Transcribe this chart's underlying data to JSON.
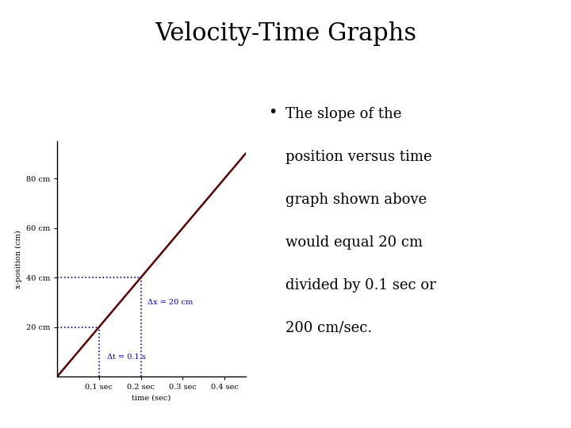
{
  "title": "Velocity-Time Graphs",
  "title_fontsize": 22,
  "title_font": "serif",
  "background_color": "#ffffff",
  "graph": {
    "xlim": [
      0,
      0.45
    ],
    "ylim": [
      0,
      95
    ],
    "xlabel": "time (sec)",
    "ylabel": "x-position (cm)",
    "xticks": [
      0.1,
      0.2,
      0.3,
      0.4
    ],
    "xtick_labels": [
      "0.1 sec",
      "0.2 sec",
      "0.3 sec",
      "0.4 sec"
    ],
    "yticks": [
      20,
      40,
      60,
      80
    ],
    "ytick_labels": [
      "20 cm",
      "40 cm",
      "60 cm",
      "80 cm"
    ],
    "line_x": [
      0,
      0.45
    ],
    "line_y": [
      0,
      90
    ],
    "line_color": "#5a0000",
    "line_width": 1.8,
    "dotted_color": "#0000aa",
    "delta_x_label": "Δx = 20 cm",
    "delta_t_label": "Δt = 0.1 s",
    "annotation_color": "#0000cc",
    "annotation_fontsize": 7,
    "label_fontsize": 7,
    "tick_fontsize": 7
  },
  "bullet_text": [
    "The slope of the",
    "position versus time",
    "graph shown above",
    "would equal 20 cm",
    "divided by 0.1 sec or",
    "200 cm/sec."
  ],
  "bullet_fontsize": 13,
  "bullet_color": "#000000"
}
